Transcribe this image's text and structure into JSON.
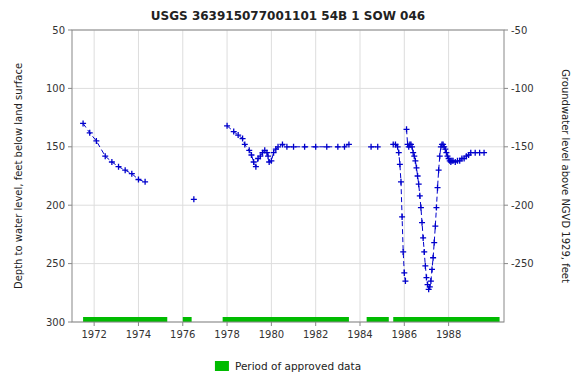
{
  "chart_data": {
    "type": "line",
    "title": "USGS 363915077001101 54B  1 SOW 046",
    "y_label": "Depth to water level, feet below land surface",
    "y2_label": "Groundwater level above NGVD 1929, feet",
    "xlim": [
      1971.0,
      1990.5
    ],
    "xticks": [
      1972,
      1974,
      1976,
      1978,
      1980,
      1982,
      1984,
      1986,
      1988
    ],
    "ylim": [
      300,
      50
    ],
    "yticks": [
      50,
      100,
      150,
      200,
      250,
      300
    ],
    "y2lim": [
      -300,
      -50
    ],
    "y2ticks": [
      -50,
      -100,
      -150,
      -200,
      -250
    ],
    "grid": true,
    "x": [
      1971.5,
      1971.8,
      1972.1,
      1972.5,
      1972.8,
      1973.1,
      1973.4,
      1973.7,
      1974.0,
      1974.3,
      null,
      1976.5,
      null,
      1978.0,
      1978.3,
      1978.5,
      1978.7,
      1978.8,
      1979.0,
      1979.1,
      1979.2,
      1979.3,
      1979.4,
      1979.5,
      1979.6,
      1979.7,
      1979.8,
      1979.85,
      1979.9,
      1980.0,
      1980.1,
      1980.2,
      1980.3,
      1980.5,
      1980.7,
      1981.0,
      1981.5,
      1982.0,
      1982.5,
      1983.0,
      1983.3,
      1983.5,
      null,
      1984.5,
      1984.8,
      null,
      1985.5,
      1985.6,
      1985.7,
      1985.75,
      1985.8,
      1985.85,
      1985.9,
      1985.95,
      1986.0,
      1986.05,
      null,
      1986.1,
      1986.15,
      1986.2,
      1986.25,
      1986.3,
      1986.35,
      1986.4,
      1986.45,
      1986.5,
      1986.55,
      1986.6,
      1986.65,
      1986.7,
      1986.75,
      1986.8,
      1986.85,
      1986.9,
      1986.95,
      1987.0,
      1987.05,
      1987.1,
      1987.15,
      1987.2,
      1987.25,
      1987.3,
      1987.35,
      1987.4,
      1987.45,
      1987.5,
      1987.55,
      1987.6,
      1987.65,
      1987.7,
      1987.75,
      1987.8,
      1987.85,
      1987.9,
      1987.95,
      1988.0,
      1988.05,
      1988.1,
      1988.15,
      1988.2,
      1988.3,
      1988.4,
      1988.5,
      1988.6,
      1988.7,
      1988.8,
      1988.9,
      1989.0,
      1989.2,
      1989.4,
      1989.6
    ],
    "series": [
      {
        "color": "#0000CC",
        "marker": "plus",
        "line_style": "dashed",
        "values": [
          130,
          138,
          145,
          158,
          163,
          167,
          170,
          173,
          178,
          180,
          null,
          195,
          null,
          132,
          137,
          140,
          143,
          148,
          153,
          157,
          163,
          167,
          160,
          158,
          155,
          153,
          155,
          158,
          163,
          162,
          155,
          152,
          150,
          148,
          150,
          150,
          150,
          150,
          150,
          150,
          150,
          148,
          null,
          150,
          150,
          null,
          148,
          148,
          150,
          155,
          165,
          180,
          210,
          240,
          258,
          265,
          null,
          135,
          148,
          150,
          148,
          148,
          150,
          155,
          158,
          162,
          168,
          175,
          182,
          192,
          202,
          215,
          228,
          240,
          252,
          262,
          268,
          272,
          270,
          265,
          255,
          245,
          232,
          218,
          202,
          185,
          170,
          158,
          150,
          148,
          148,
          150,
          152,
          155,
          158,
          160,
          162,
          163,
          162,
          162,
          163,
          162,
          162,
          160,
          160,
          158,
          157,
          155,
          155,
          155,
          155
        ]
      }
    ],
    "approved": {
      "name": "Period of approved data",
      "color": "#00bb00",
      "y": 300,
      "periods": [
        [
          1971.5,
          1975.3
        ],
        [
          1976.0,
          1976.4
        ],
        [
          1977.8,
          1983.5
        ],
        [
          1984.3,
          1985.3
        ],
        [
          1985.5,
          1990.3
        ]
      ]
    }
  }
}
